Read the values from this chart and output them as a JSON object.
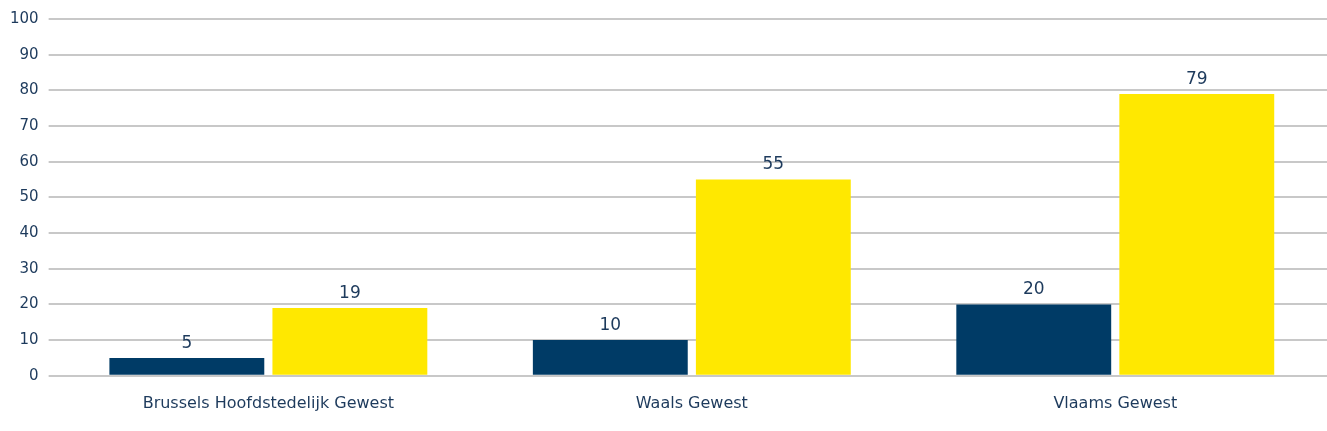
{
  "chart_data": {
    "type": "bar",
    "categories": [
      "Brussels Hoofdstedelijk Gewest",
      "Waals Gewest",
      "Vlaams Gewest"
    ],
    "series": [
      {
        "color": "#003b66",
        "values": [
          5,
          10,
          20
        ]
      },
      {
        "color": "#ffe800",
        "values": [
          19,
          55,
          79
        ]
      }
    ],
    "ylim": [
      0,
      100
    ],
    "yticks": [
      0,
      10,
      20,
      30,
      40,
      50,
      60,
      70,
      80,
      90,
      100
    ],
    "grid": "y",
    "legend": false,
    "data_labels": true
  }
}
